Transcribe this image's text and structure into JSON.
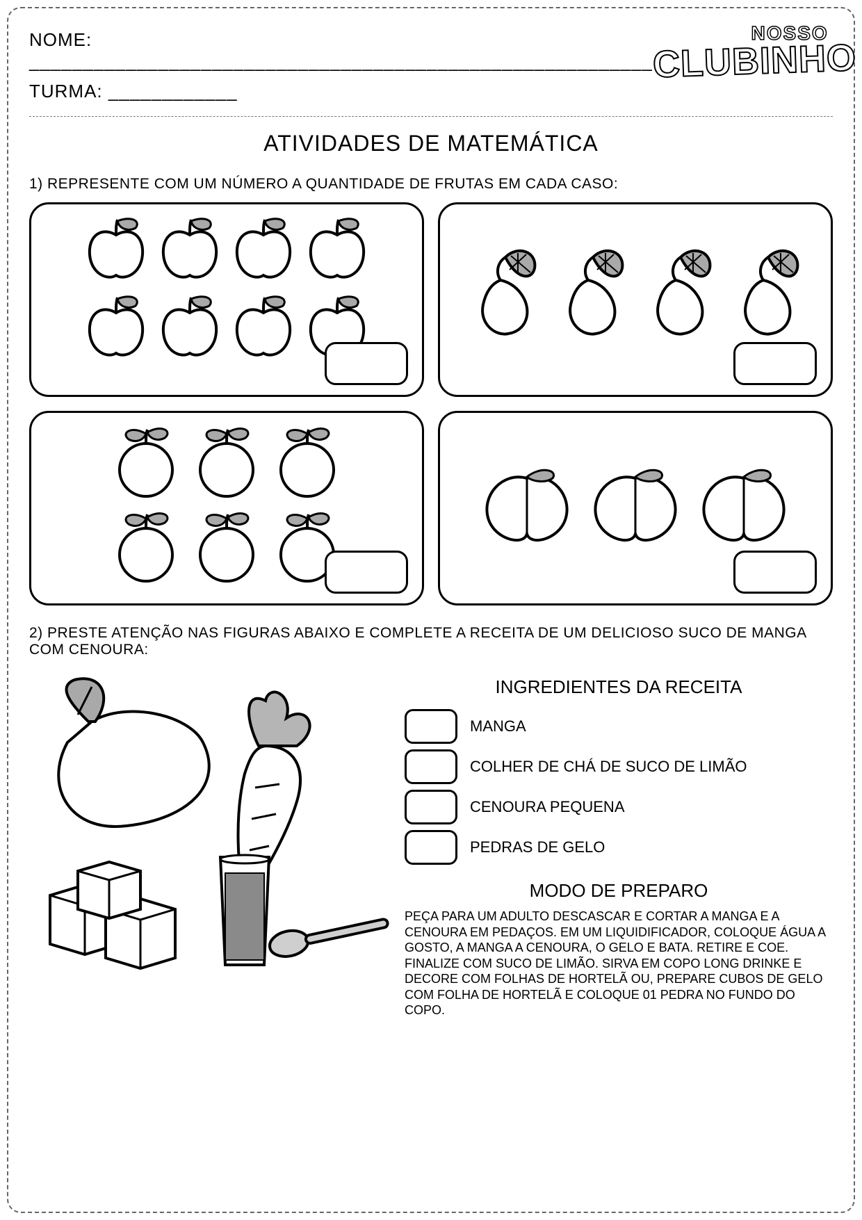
{
  "header": {
    "name_label": "NOME:",
    "name_blank": " __________________________________________________________",
    "turma_label": "TURMA:",
    "turma_blank": " ____________",
    "logo_top": "NOSSO",
    "logo_bottom": "CLUBINHO"
  },
  "title": "ATIVIDADES DE MATEMÁTICA",
  "q1": {
    "instruction": "1) REPRESENTE COM UM NÚMERO A QUANTIDADE DE FRUTAS EM CADA CASO:",
    "cards": [
      {
        "fruit": "apple",
        "count": 8,
        "rows": 2
      },
      {
        "fruit": "pear",
        "count": 4,
        "rows": 1
      },
      {
        "fruit": "orange",
        "count": 6,
        "rows": 2
      },
      {
        "fruit": "peach",
        "count": 3,
        "rows": 1
      }
    ]
  },
  "q2": {
    "instruction": "2) PRESTE ATENÇÃO NAS FIGURAS ABAIXO E COMPLETE  A RECEITA DE UM DELICIOSO SUCO DE MANGA COM CENOURA:",
    "ingredients_title": "INGREDIENTES DA RECEITA",
    "ingredients": [
      {
        "label": "MANGA"
      },
      {
        "label": "COLHER DE CHÁ DE SUCO DE LIMÃO"
      },
      {
        "label": "CENOURA PEQUENA"
      },
      {
        "label": "PEDRAS DE GELO"
      }
    ],
    "modo_title": "MODO DE PREPARO",
    "modo_text": "PEÇA PARA UM ADULTO DESCASCAR E CORTAR A MANGA E A CENOURA EM PEDAÇOS. EM UM LIQUIDIFICADOR, COLOQUE ÁGUA A GOSTO, A MANGA A CENOURA, O GELO E BATA. RETIRE E COE. FINALIZE COM SUCO DE LIMÃO. SIRVA EM COPO LONG DRINKE E DECORE COM FOLHAS DE HORTELÃ OU, PREPARE CUBOS DE GELO COM FOLHA DE HORTELÃ E COLOQUE 01 PEDRA NO FUNDO DO COPO."
  },
  "style": {
    "stroke": "#000000",
    "leaf_fill": "#a9a9a9",
    "carrot_top_fill": "#b5b5b5",
    "juice_fill": "#8a8a8a",
    "spoon_fill": "#cfcfcf",
    "ice_fill": "#ffffff",
    "fruit_fill": "#ffffff"
  }
}
